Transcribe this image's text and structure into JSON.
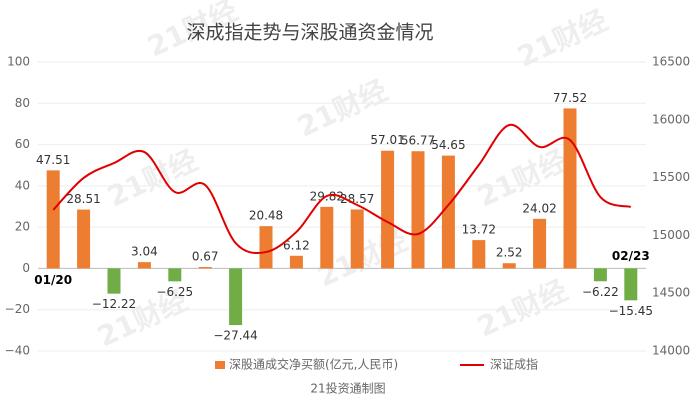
{
  "chart_data": {
    "type": "bar_line",
    "title": "深成指走势与深股通资金情况",
    "watermark": "21财经",
    "source": "21投资通制图",
    "categories": [
      "01/20",
      null,
      null,
      null,
      null,
      null,
      null,
      null,
      null,
      null,
      null,
      null,
      null,
      null,
      null,
      null,
      null,
      null,
      null,
      "02/23"
    ],
    "series": [
      {
        "name": "深股通成交净买额(亿元,人民币)",
        "type": "bar",
        "color": "#ed7d31",
        "negative_color": "#70ad47",
        "values": [
          47.51,
          28.51,
          -12.22,
          3.04,
          -6.25,
          0.67,
          -27.44,
          20.48,
          6.12,
          29.82,
          28.57,
          57.01,
          56.77,
          54.65,
          13.72,
          2.52,
          24.02,
          77.52,
          -6.22,
          -15.45
        ],
        "value_labels": [
          "47.51",
          "28.51",
          "−12.22",
          "3.04",
          "−6.25",
          "0.67",
          "−27.44",
          "20.48",
          "6.12",
          "29.82",
          "28.57",
          "57.01",
          "56.77",
          "54.65",
          "13.72",
          "2.52",
          "24.02",
          "77.52",
          "−6.22",
          "−15.45"
        ]
      },
      {
        "name": "深证成指",
        "type": "line",
        "axis": "y2",
        "color": "#e00000",
        "values": [
          15220,
          15497,
          15626,
          15721,
          15375,
          15436,
          14934,
          14856,
          15030,
          15341,
          15263,
          15116,
          15012,
          15263,
          15609,
          15955,
          15765,
          15825,
          15332,
          15246
        ]
      }
    ],
    "ylim": [
      -40,
      100
    ],
    "yticks": [
      {
        "value": -40,
        "label": "−40"
      },
      {
        "value": -20,
        "label": "−20"
      },
      0,
      20,
      40,
      60,
      80,
      100
    ],
    "y2lim": [
      14000,
      16500
    ],
    "y2ticks": [
      14000,
      14500,
      15000,
      15500,
      16000,
      16500
    ],
    "grid": true
  }
}
